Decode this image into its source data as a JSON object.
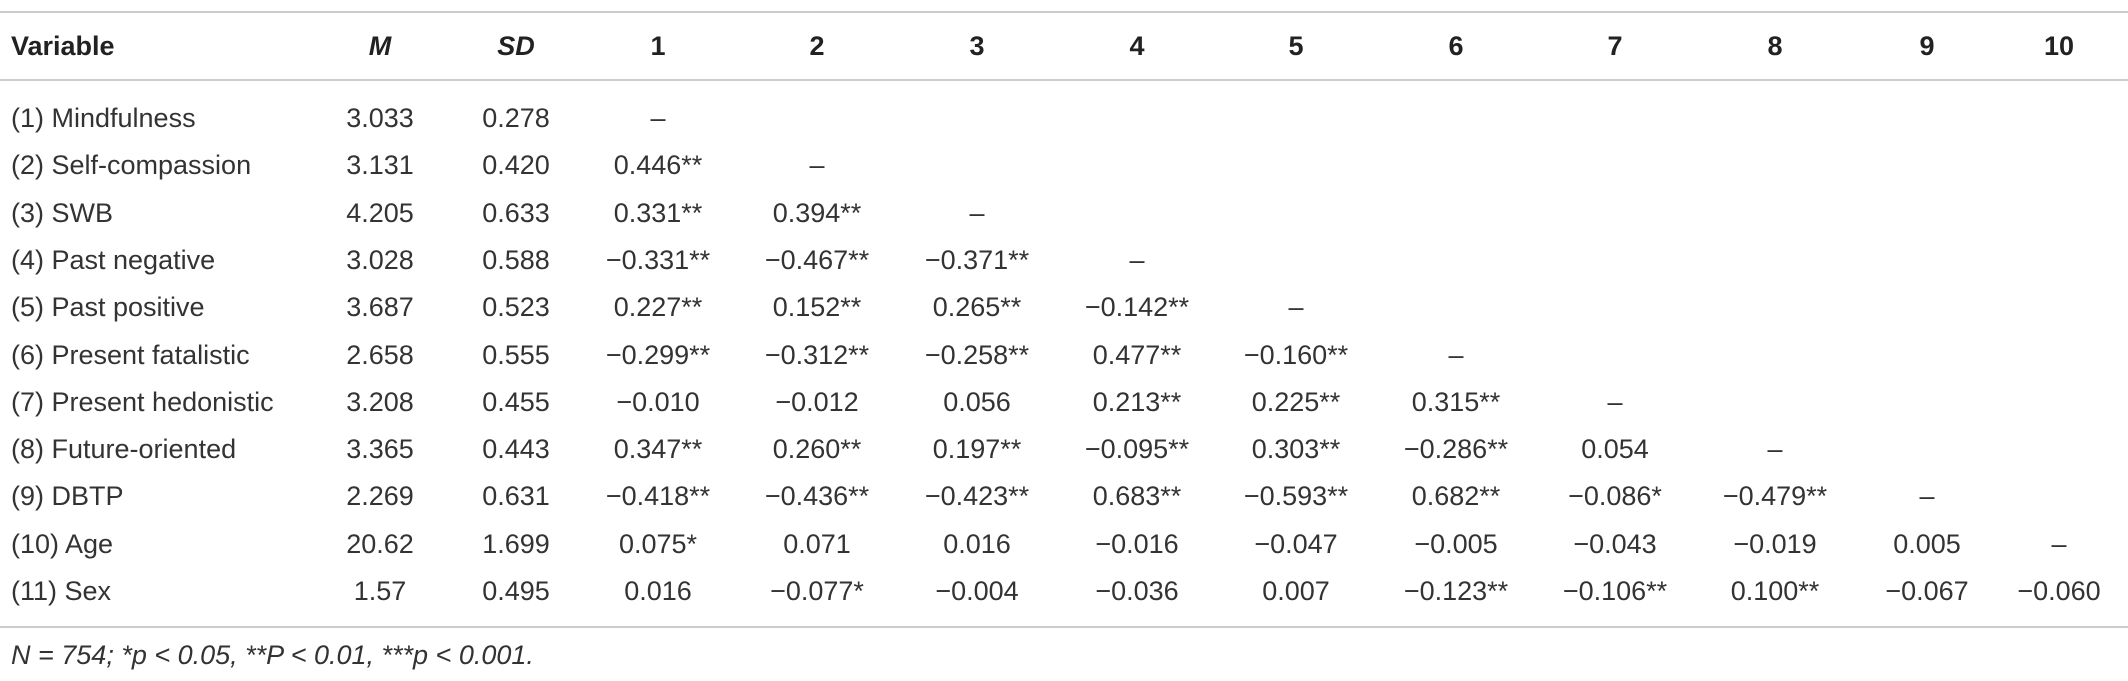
{
  "table": {
    "header": [
      "Variable",
      "M",
      "SD",
      "1",
      "2",
      "3",
      "4",
      "5",
      "6",
      "7",
      "8",
      "9",
      "10"
    ],
    "rows": [
      [
        "(1) Mindfulness",
        "3.033",
        "0.278",
        "–"
      ],
      [
        "(2) Self-compassion",
        "3.131",
        "0.420",
        "0.446**",
        "–"
      ],
      [
        "(3) SWB",
        "4.205",
        "0.633",
        "0.331**",
        "0.394**",
        "–"
      ],
      [
        "(4) Past negative",
        "3.028",
        "0.588",
        "−0.331**",
        "−0.467**",
        "−0.371**",
        "–"
      ],
      [
        "(5) Past positive",
        "3.687",
        "0.523",
        "0.227**",
        "0.152**",
        "0.265**",
        "−0.142**",
        "–"
      ],
      [
        "(6) Present fatalistic",
        "2.658",
        "0.555",
        "−0.299**",
        "−0.312**",
        "−0.258**",
        "0.477**",
        "−0.160**",
        "–"
      ],
      [
        "(7) Present hedonistic",
        "3.208",
        "0.455",
        "−0.010",
        "−0.012",
        "0.056",
        "0.213**",
        "0.225**",
        "0.315**",
        "–"
      ],
      [
        "(8) Future-oriented",
        "3.365",
        "0.443",
        "0.347**",
        "0.260**",
        "0.197**",
        "−0.095**",
        "0.303**",
        "−0.286**",
        "0.054",
        "–"
      ],
      [
        "(9) DBTP",
        "2.269",
        "0.631",
        "−0.418**",
        "−0.436**",
        "−0.423**",
        "0.683**",
        "−0.593**",
        "0.682**",
        "−0.086*",
        "−0.479**",
        "–"
      ],
      [
        "(10) Age",
        "20.62",
        "1.699",
        "0.075*",
        "0.071",
        "0.016",
        "−0.016",
        "−0.047",
        "−0.005",
        "−0.043",
        "−0.019",
        "0.005",
        "–"
      ],
      [
        "(11) Sex",
        "1.57",
        "0.495",
        "0.016",
        "−0.077*",
        "−0.004",
        "−0.036",
        "0.007",
        "−0.123**",
        "−0.106**",
        "0.100**",
        "−0.067",
        "−0.060"
      ]
    ],
    "footnote": "N = 754; *p < 0.05, **P < 0.01, ***p < 0.001."
  }
}
